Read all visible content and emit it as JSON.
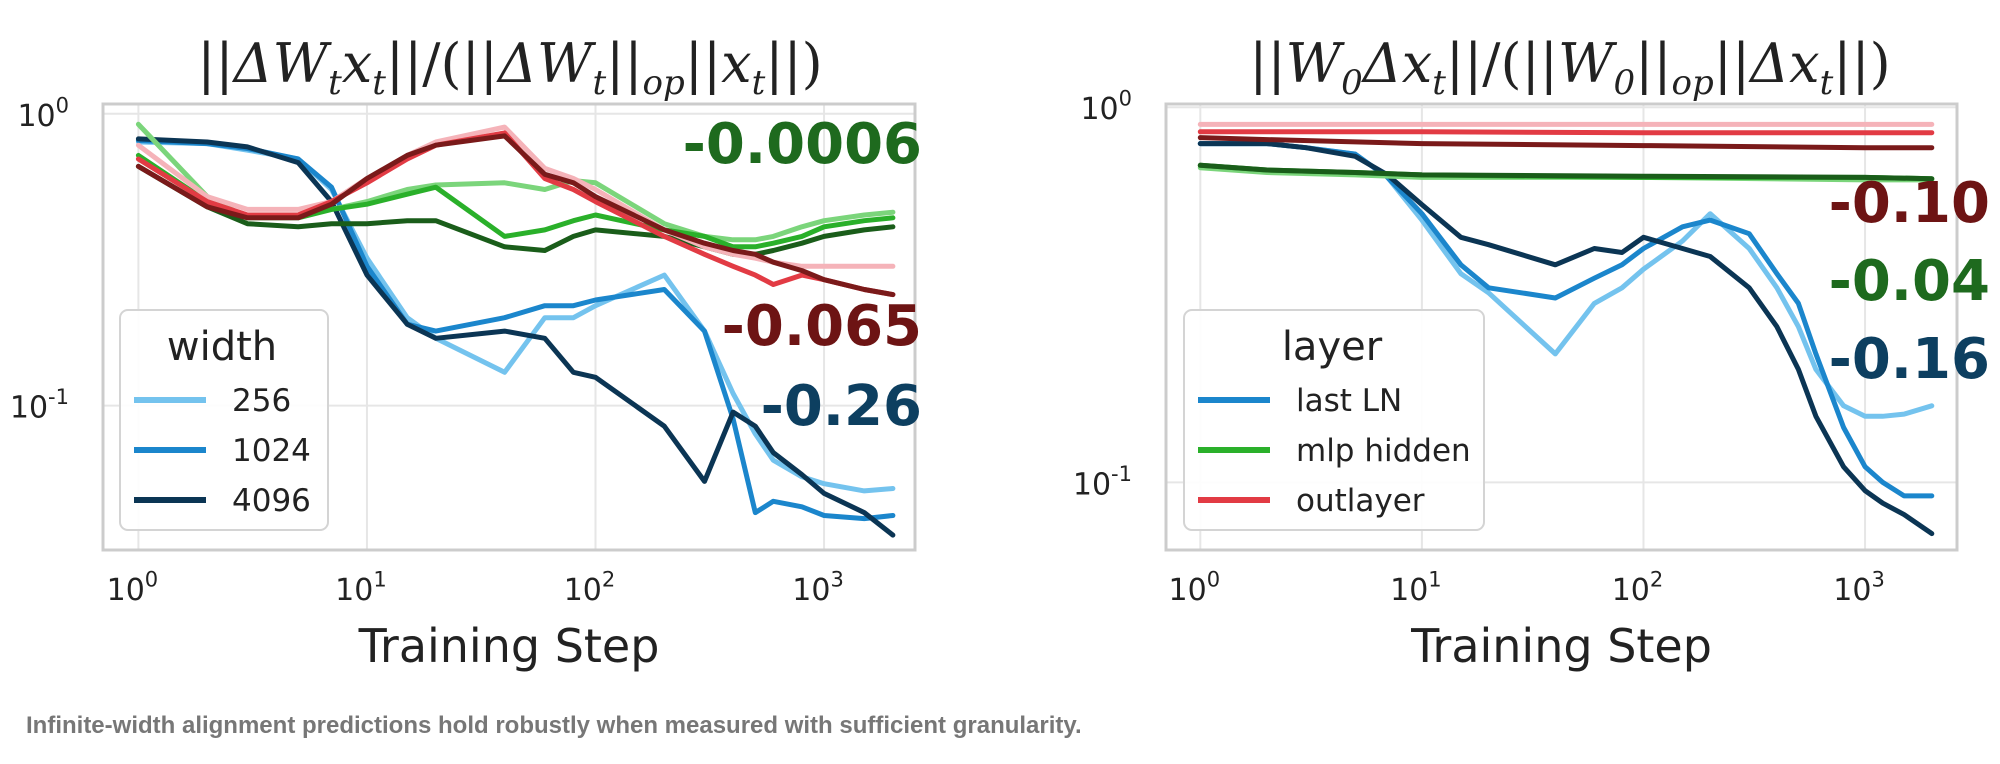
{
  "caption": "Infinite-width alignment predictions hold robustly when measured with sufficient granularity.",
  "chart_data": [
    {
      "type": "line",
      "title": "||ΔWₜ xₜ|| / (||ΔWₜ||ₒₚ ||xₜ||)",
      "title_parts": [
        "||",
        "ΔW",
        "t",
        "x",
        "t",
        "||/(||",
        "ΔW",
        "t",
        "||",
        "op",
        "||",
        "x",
        "t",
        "||)"
      ],
      "xlabel": "Training Step",
      "ylabel": "",
      "xscale": "log",
      "yscale": "log",
      "xlim": [
        0.7,
        2500
      ],
      "ylim": [
        0.032,
        1.08
      ],
      "x_ticks": [
        {
          "base": "10",
          "exp": "0"
        },
        {
          "base": "10",
          "exp": "1"
        },
        {
          "base": "10",
          "exp": "2"
        },
        {
          "base": "10",
          "exp": "3"
        }
      ],
      "y_ticks": [
        {
          "base": "10",
          "exp": "0"
        },
        {
          "base": "10",
          "exp": "-1"
        }
      ],
      "legend": {
        "title": "width",
        "position": "lower-left",
        "entries": [
          {
            "label": "256",
            "color": "#74c3ee"
          },
          {
            "label": "1024",
            "color": "#1b86cc"
          },
          {
            "label": "4096",
            "color": "#0b3554"
          }
        ]
      },
      "annotations": [
        {
          "text": "-0.0006",
          "color": "#1e6a1e"
        },
        {
          "text": "-0.065",
          "color": "#6d1414"
        },
        {
          "text": "-0.26",
          "color": "#0d3f60"
        }
      ],
      "series": [
        {
          "name": "blue-256",
          "color": "#74c3ee",
          "x": [
            1,
            2,
            3,
            5,
            7,
            10,
            15,
            20,
            40,
            60,
            80,
            100,
            200,
            300,
            400,
            500,
            600,
            800,
            1000,
            1500,
            2000
          ],
          "y": [
            0.8,
            0.79,
            0.75,
            0.7,
            0.55,
            0.32,
            0.2,
            0.17,
            0.13,
            0.2,
            0.2,
            0.22,
            0.28,
            0.18,
            0.11,
            0.08,
            0.065,
            0.057,
            0.054,
            0.051,
            0.052
          ]
        },
        {
          "name": "blue-1024",
          "color": "#1b86cc",
          "x": [
            1,
            2,
            3,
            5,
            7,
            10,
            15,
            20,
            40,
            60,
            80,
            100,
            200,
            300,
            400,
            500,
            600,
            800,
            1000,
            1500,
            2000
          ],
          "y": [
            0.81,
            0.79,
            0.76,
            0.7,
            0.56,
            0.3,
            0.19,
            0.18,
            0.2,
            0.22,
            0.22,
            0.23,
            0.25,
            0.18,
            0.09,
            0.043,
            0.047,
            0.045,
            0.042,
            0.041,
            0.042
          ]
        },
        {
          "name": "blue-4096",
          "color": "#0b3554",
          "x": [
            1,
            2,
            3,
            5,
            7,
            10,
            15,
            20,
            40,
            60,
            80,
            100,
            200,
            300,
            400,
            500,
            600,
            800,
            1000,
            1500,
            2000
          ],
          "y": [
            0.82,
            0.8,
            0.77,
            0.68,
            0.5,
            0.28,
            0.19,
            0.17,
            0.18,
            0.17,
            0.13,
            0.125,
            0.085,
            0.055,
            0.095,
            0.085,
            0.069,
            0.058,
            0.05,
            0.043,
            0.036
          ]
        },
        {
          "name": "green-256",
          "color": "#7bd57b",
          "x": [
            1,
            2,
            3,
            5,
            7,
            10,
            15,
            20,
            40,
            60,
            80,
            100,
            200,
            300,
            400,
            500,
            600,
            800,
            1000,
            1500,
            2000
          ],
          "y": [
            0.92,
            0.52,
            0.44,
            0.45,
            0.47,
            0.5,
            0.55,
            0.57,
            0.58,
            0.55,
            0.59,
            0.58,
            0.42,
            0.38,
            0.37,
            0.37,
            0.38,
            0.41,
            0.43,
            0.45,
            0.46
          ]
        },
        {
          "name": "green-1024",
          "color": "#2ab02a",
          "x": [
            1,
            2,
            3,
            5,
            7,
            10,
            15,
            20,
            40,
            60,
            80,
            100,
            200,
            300,
            400,
            500,
            600,
            800,
            1000,
            1500,
            2000
          ],
          "y": [
            0.72,
            0.5,
            0.44,
            0.44,
            0.47,
            0.49,
            0.53,
            0.56,
            0.38,
            0.4,
            0.43,
            0.45,
            0.4,
            0.38,
            0.35,
            0.35,
            0.36,
            0.38,
            0.41,
            0.43,
            0.44
          ]
        },
        {
          "name": "green-4096",
          "color": "#1a5d1a",
          "x": [
            1,
            2,
            3,
            5,
            7,
            10,
            15,
            20,
            40,
            60,
            80,
            100,
            200,
            300,
            400,
            500,
            600,
            800,
            1000,
            1500,
            2000
          ],
          "y": [
            0.66,
            0.48,
            0.42,
            0.41,
            0.42,
            0.42,
            0.43,
            0.43,
            0.35,
            0.34,
            0.38,
            0.4,
            0.38,
            0.35,
            0.33,
            0.33,
            0.34,
            0.36,
            0.38,
            0.4,
            0.41
          ]
        },
        {
          "name": "red-256",
          "color": "#f5b3b9",
          "x": [
            1,
            2,
            3,
            5,
            7,
            10,
            15,
            20,
            40,
            60,
            80,
            100,
            200,
            300,
            400,
            500,
            600,
            800,
            1000,
            1500,
            2000
          ],
          "y": [
            0.78,
            0.52,
            0.47,
            0.47,
            0.5,
            0.6,
            0.72,
            0.8,
            0.9,
            0.65,
            0.6,
            0.55,
            0.4,
            0.35,
            0.33,
            0.32,
            0.31,
            0.3,
            0.3,
            0.3,
            0.3
          ]
        },
        {
          "name": "red-1024",
          "color": "#e23b44",
          "x": [
            1,
            2,
            3,
            5,
            7,
            10,
            15,
            20,
            40,
            60,
            80,
            100,
            200,
            300,
            400,
            500,
            600,
            800,
            1000,
            1500,
            2000
          ],
          "y": [
            0.7,
            0.5,
            0.45,
            0.45,
            0.5,
            0.58,
            0.7,
            0.78,
            0.86,
            0.6,
            0.55,
            0.5,
            0.38,
            0.33,
            0.3,
            0.28,
            0.26,
            0.28,
            0.27,
            0.25,
            0.24
          ]
        },
        {
          "name": "red-4096",
          "color": "#7a1a1a",
          "x": [
            1,
            2,
            3,
            5,
            7,
            10,
            15,
            20,
            40,
            60,
            80,
            100,
            200,
            300,
            400,
            500,
            600,
            800,
            1000,
            1500,
            2000
          ],
          "y": [
            0.66,
            0.48,
            0.44,
            0.44,
            0.49,
            0.6,
            0.72,
            0.78,
            0.84,
            0.62,
            0.58,
            0.52,
            0.4,
            0.36,
            0.34,
            0.33,
            0.31,
            0.29,
            0.27,
            0.25,
            0.24
          ]
        }
      ]
    },
    {
      "type": "line",
      "title": "||W₀ Δxₜ|| / (||W₀||ₒₚ ||Δxₜ||)",
      "title_parts": [
        "||",
        "W",
        "0",
        "Δx",
        "t",
        "||/(||",
        "W",
        "0",
        "||",
        "op",
        "||",
        "Δx",
        "t",
        "||)"
      ],
      "xlabel": "Training Step",
      "ylabel": "",
      "xscale": "log",
      "yscale": "log",
      "xlim": [
        0.7,
        2600
      ],
      "ylim": [
        0.066,
        1.02
      ],
      "x_ticks": [
        {
          "base": "10",
          "exp": "0"
        },
        {
          "base": "10",
          "exp": "1"
        },
        {
          "base": "10",
          "exp": "2"
        },
        {
          "base": "10",
          "exp": "3"
        }
      ],
      "y_ticks": [
        {
          "base": "10",
          "exp": "0"
        },
        {
          "base": "10",
          "exp": "-1"
        }
      ],
      "legend": {
        "title": "layer",
        "position": "lower-left",
        "entries": [
          {
            "label": "last LN",
            "color": "#1b86cc"
          },
          {
            "label": "mlp hidden",
            "color": "#2ab02a"
          },
          {
            "label": "outlayer",
            "color": "#e23b44"
          }
        ]
      },
      "annotations": [
        {
          "text": "-0.10",
          "color": "#6d1414"
        },
        {
          "text": "-0.04",
          "color": "#1e6a1e"
        },
        {
          "text": "-0.16",
          "color": "#0d3f60"
        }
      ],
      "series": [
        {
          "name": "blue-256",
          "color": "#74c3ee",
          "x": [
            1,
            2,
            3,
            5,
            7,
            10,
            15,
            20,
            40,
            60,
            80,
            100,
            150,
            200,
            300,
            400,
            500,
            600,
            800,
            1000,
            1200,
            1500,
            2000
          ],
          "y": [
            0.8,
            0.8,
            0.78,
            0.75,
            0.65,
            0.5,
            0.36,
            0.32,
            0.22,
            0.3,
            0.33,
            0.37,
            0.44,
            0.52,
            0.42,
            0.33,
            0.26,
            0.2,
            0.16,
            0.15,
            0.15,
            0.152,
            0.16
          ]
        },
        {
          "name": "blue-1024",
          "color": "#1b86cc",
          "x": [
            1,
            2,
            3,
            5,
            7,
            10,
            15,
            20,
            40,
            60,
            80,
            100,
            150,
            200,
            300,
            400,
            500,
            600,
            800,
            1000,
            1200,
            1500,
            2000
          ],
          "y": [
            0.8,
            0.8,
            0.78,
            0.75,
            0.65,
            0.52,
            0.38,
            0.33,
            0.31,
            0.35,
            0.38,
            0.42,
            0.48,
            0.5,
            0.46,
            0.36,
            0.3,
            0.22,
            0.14,
            0.11,
            0.1,
            0.092,
            0.092
          ]
        },
        {
          "name": "blue-4096",
          "color": "#0b3554",
          "x": [
            1,
            2,
            3,
            5,
            7,
            10,
            15,
            20,
            40,
            60,
            80,
            100,
            150,
            200,
            300,
            400,
            500,
            600,
            800,
            1000,
            1200,
            1500,
            2000
          ],
          "y": [
            0.8,
            0.8,
            0.78,
            0.74,
            0.66,
            0.55,
            0.45,
            0.43,
            0.38,
            0.42,
            0.41,
            0.45,
            0.42,
            0.4,
            0.33,
            0.26,
            0.2,
            0.15,
            0.11,
            0.095,
            0.088,
            0.082,
            0.073
          ]
        },
        {
          "name": "green-256",
          "color": "#7bd57b",
          "x": [
            1,
            2,
            5,
            10,
            100,
            1000,
            2000
          ],
          "y": [
            0.69,
            0.67,
            0.66,
            0.65,
            0.65,
            0.64,
            0.64
          ]
        },
        {
          "name": "green-1024",
          "color": "#2ab02a",
          "x": [
            1,
            2,
            5,
            10,
            100,
            1000,
            2000
          ],
          "y": [
            0.7,
            0.68,
            0.67,
            0.66,
            0.65,
            0.65,
            0.645
          ]
        },
        {
          "name": "green-4096",
          "color": "#1a5d1a",
          "x": [
            1,
            2,
            5,
            10,
            100,
            1000,
            2000
          ],
          "y": [
            0.7,
            0.68,
            0.67,
            0.66,
            0.655,
            0.65,
            0.645
          ]
        },
        {
          "name": "red-256",
          "color": "#f5b3b9",
          "x": [
            1,
            10,
            100,
            1000,
            2000
          ],
          "y": [
            0.9,
            0.9,
            0.9,
            0.9,
            0.9
          ]
        },
        {
          "name": "red-1024",
          "color": "#e23b44",
          "x": [
            1,
            10,
            100,
            1000,
            2000
          ],
          "y": [
            0.86,
            0.86,
            0.855,
            0.855,
            0.855
          ]
        },
        {
          "name": "red-4096",
          "color": "#7a1a1a",
          "x": [
            1,
            2,
            10,
            100,
            1000,
            2000
          ],
          "y": [
            0.83,
            0.82,
            0.8,
            0.79,
            0.78,
            0.78
          ]
        }
      ]
    }
  ]
}
